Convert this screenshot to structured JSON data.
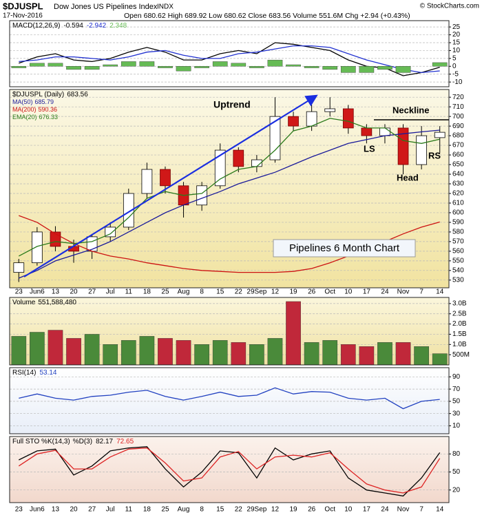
{
  "header": {
    "symbol": "$DJUSPL",
    "name": "Dow Jones US Pipelines Index",
    "exchange": "INDX",
    "credit": "© StockCharts.com",
    "date": "17-Nov-2016",
    "quote": "Open 680.62 High 689.92 Low 680.62 Close 683.56 Volume 551.6M Chg +2.94 (+0.43%)"
  },
  "chart_data": [
    {
      "type": "line",
      "ylim": [
        -13,
        29
      ],
      "yticks": [
        25,
        20,
        15,
        10,
        5,
        0,
        -5,
        -10
      ],
      "grid": true,
      "series": [
        {
          "name": "MACD(12,26,9)",
          "type": "line",
          "color": "#000000",
          "values": [
            2,
            6,
            8,
            4,
            3,
            5,
            9,
            12,
            9,
            4,
            4,
            8,
            10,
            8,
            15,
            14,
            12,
            10,
            4,
            0,
            -1,
            -6,
            -4,
            -0.594
          ]
        },
        {
          "type": "line",
          "color": "#2030d0",
          "values": [
            3,
            4,
            6,
            6,
            5,
            4,
            6,
            9,
            10,
            7,
            5,
            5,
            8,
            9,
            11,
            13,
            13,
            12,
            8,
            4,
            1,
            -2,
            -4,
            -2.942
          ]
        },
        {
          "type": "bar",
          "color": "#66bb55",
          "values": [
            -1,
            2,
            2,
            -2,
            -2,
            1,
            3,
            3,
            -1,
            -3,
            -1,
            3,
            2,
            -1,
            4,
            1,
            -1,
            -2,
            -4,
            -4,
            -2,
            -4,
            0,
            2.348
          ]
        }
      ]
    },
    {
      "type": "candlestick",
      "name": "$DJUSPL (Daily)",
      "ylim": [
        522,
        728
      ],
      "yticks": [
        530,
        540,
        550,
        560,
        570,
        580,
        590,
        600,
        610,
        620,
        630,
        640,
        650,
        660,
        670,
        680,
        690,
        700,
        710,
        720
      ],
      "grid": true,
      "categories": [
        "23",
        "Jun6",
        "13",
        "20",
        "27",
        "Jul",
        "11",
        "18",
        "25",
        "Aug",
        "8",
        "15",
        "22",
        "29Sep",
        "12",
        "19",
        "26",
        "Oct",
        "10",
        "17",
        "24",
        "Nov",
        "7",
        "14"
      ],
      "open": [
        538,
        548,
        580,
        565,
        560,
        575,
        585,
        620,
        645,
        628,
        608,
        628,
        665,
        648,
        655,
        700,
        690,
        705,
        708,
        688,
        680,
        688,
        650,
        678
      ],
      "high": [
        552,
        585,
        586,
        572,
        578,
        590,
        625,
        652,
        648,
        632,
        632,
        672,
        668,
        660,
        720,
        705,
        712,
        720,
        712,
        692,
        692,
        692,
        690,
        690
      ],
      "low": [
        528,
        545,
        560,
        548,
        552,
        570,
        582,
        615,
        620,
        595,
        602,
        625,
        642,
        642,
        652,
        685,
        685,
        700,
        682,
        672,
        672,
        640,
        645,
        662
      ],
      "close": [
        548,
        580,
        565,
        560,
        575,
        585,
        620,
        645,
        628,
        608,
        628,
        665,
        648,
        655,
        700,
        690,
        705,
        708,
        688,
        680,
        688,
        650,
        680,
        683.56
      ],
      "up_color": "#ffffff",
      "down_color": "#d01818",
      "series": [
        {
          "name": "MA(50)",
          "type": "line",
          "color": "#1a1a9a",
          "values": [
            532,
            540,
            550,
            556,
            562,
            570,
            580,
            590,
            600,
            608,
            615,
            622,
            630,
            636,
            642,
            650,
            658,
            665,
            672,
            676,
            680,
            682,
            684,
            685.79
          ]
        },
        {
          "name": "MA(200)",
          "type": "line",
          "color": "#cc1111",
          "values": [
            597,
            590,
            578,
            568,
            560,
            555,
            552,
            548,
            545,
            542,
            540,
            539,
            538,
            538,
            538,
            539,
            542,
            548,
            555,
            562,
            570,
            578,
            585,
            590.36
          ]
        },
        {
          "name": "EMA(20)",
          "type": "line",
          "color": "#2a7a1a",
          "values": [
            555,
            565,
            570,
            568,
            570,
            578,
            595,
            615,
            622,
            618,
            620,
            635,
            645,
            648,
            665,
            685,
            690,
            698,
            695,
            688,
            688,
            675,
            672,
            676.33
          ]
        }
      ],
      "annotations": [
        "Uptrend",
        "Neckline",
        "LS",
        "Head",
        "RS"
      ],
      "label": "Pipelines 6 Month Chart"
    },
    {
      "type": "bar",
      "ylim": [
        0,
        3300000000
      ],
      "yticks": [
        {
          "value": 500000000,
          "label": "500M"
        },
        {
          "value": 1000000000,
          "label": "1.0B"
        },
        {
          "value": 1500000000,
          "label": "1.5B"
        },
        {
          "value": 2000000000,
          "label": "2.0B"
        },
        {
          "value": 2500000000,
          "label": "2.5B"
        },
        {
          "value": 3000000000,
          "label": "3.0B"
        }
      ],
      "grid": true,
      "up_color": "#4a8a3a",
      "down_color": "#c0283a",
      "series": [
        {
          "name": "Volume",
          "type": "bar",
          "last_label": "551,588,480",
          "values": [
            1400000000,
            1600000000,
            1700000000,
            1300000000,
            1500000000,
            1000000000,
            1200000000,
            1400000000,
            1300000000,
            1200000000,
            1000000000,
            1200000000,
            1100000000,
            1000000000,
            1300000000,
            3100000000,
            1100000000,
            1200000000,
            1000000000,
            900000000,
            1100000000,
            1100000000,
            900000000,
            551588480
          ]
        }
      ]
    },
    {
      "type": "line",
      "ylim": [
        -3,
        105
      ],
      "yticks": [
        90,
        70,
        50,
        30,
        10
      ],
      "grid": true,
      "series": [
        {
          "name": "RSI(14)",
          "type": "line",
          "color": "#2040c0",
          "values": [
            55,
            62,
            55,
            52,
            58,
            60,
            65,
            68,
            58,
            52,
            58,
            65,
            58,
            60,
            72,
            62,
            66,
            65,
            55,
            52,
            55,
            38,
            50,
            53.14
          ]
        }
      ]
    },
    {
      "type": "line",
      "ylim": [
        -1,
        109
      ],
      "yticks": [
        80,
        50,
        20
      ],
      "grid": true,
      "categories": [
        "23",
        "Jun6",
        "13",
        "20",
        "27",
        "Jul",
        "11",
        "18",
        "25",
        "Aug",
        "8",
        "15",
        "22",
        "29Sep",
        "12",
        "19",
        "26",
        "Oct",
        "10",
        "17",
        "24",
        "Nov",
        "7",
        "14"
      ],
      "series": [
        {
          "name": "Full STO %K(14,3)",
          "type": "line",
          "color": "#000000",
          "values": [
            70,
            85,
            88,
            45,
            60,
            85,
            90,
            92,
            55,
            25,
            50,
            85,
            82,
            40,
            90,
            70,
            80,
            85,
            40,
            20,
            15,
            10,
            40,
            82.17
          ]
        },
        {
          "name": "%D(3)",
          "type": "line",
          "color": "#dd2222",
          "values": [
            60,
            80,
            86,
            55,
            55,
            75,
            88,
            90,
            65,
            35,
            40,
            75,
            84,
            55,
            75,
            78,
            75,
            82,
            55,
            30,
            20,
            15,
            25,
            72.65
          ]
        }
      ]
    }
  ]
}
